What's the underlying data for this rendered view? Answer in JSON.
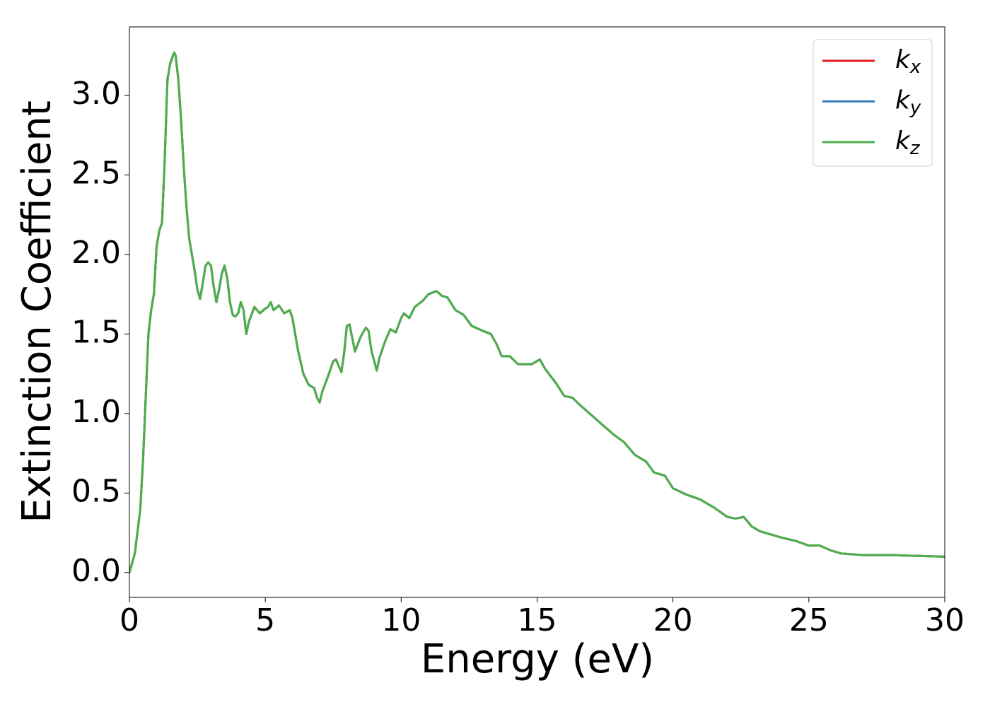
{
  "chart_data": {
    "type": "line",
    "xlabel": "Energy (eV)",
    "ylabel": "Extinction Coefficient",
    "x": [
      0,
      0.2,
      0.4,
      0.5,
      0.6,
      0.7,
      0.8,
      0.9,
      1.0,
      1.1,
      1.2,
      1.3,
      1.4,
      1.5,
      1.6,
      1.65,
      1.7,
      1.8,
      1.9,
      2.0,
      2.1,
      2.2,
      2.3,
      2.4,
      2.5,
      2.6,
      2.7,
      2.8,
      2.9,
      3.0,
      3.1,
      3.2,
      3.3,
      3.4,
      3.5,
      3.6,
      3.7,
      3.8,
      3.9,
      4.0,
      4.1,
      4.2,
      4.3,
      4.4,
      4.6,
      4.8,
      5.0,
      5.1,
      5.2,
      5.3,
      5.5,
      5.7,
      5.9,
      6.0,
      6.2,
      6.4,
      6.6,
      6.8,
      6.9,
      7.0,
      7.1,
      7.3,
      7.5,
      7.6,
      7.8,
      7.9,
      8.0,
      8.1,
      8.3,
      8.5,
      8.7,
      8.8,
      8.9,
      9.1,
      9.2,
      9.4,
      9.6,
      9.8,
      10.0,
      10.1,
      10.3,
      10.5,
      10.8,
      11.0,
      11.3,
      11.5,
      11.7,
      12.0,
      12.3,
      12.6,
      13.0,
      13.3,
      13.5,
      13.7,
      14.0,
      14.3,
      14.8,
      15.1,
      15.3,
      15.7,
      16.0,
      16.3,
      16.6,
      17.0,
      17.4,
      17.8,
      18.2,
      18.6,
      19.0,
      19.3,
      19.7,
      20.0,
      20.5,
      21.0,
      21.5,
      22.0,
      22.3,
      22.6,
      22.9,
      23.2,
      23.6,
      24.0,
      24.5,
      25.0,
      25.4,
      25.8,
      26.2,
      27,
      28,
      29,
      30
    ],
    "series": [
      {
        "name": "kx",
        "color": "#e41a1c",
        "values": [
          0,
          0.12,
          0.4,
          0.7,
          1.1,
          1.5,
          1.65,
          1.75,
          2.05,
          2.15,
          2.2,
          2.6,
          3.1,
          3.2,
          3.25,
          3.27,
          3.25,
          3.1,
          2.85,
          2.55,
          2.3,
          2.1,
          2.0,
          1.9,
          1.78,
          1.72,
          1.82,
          1.93,
          1.95,
          1.93,
          1.8,
          1.7,
          1.78,
          1.88,
          1.93,
          1.85,
          1.7,
          1.62,
          1.61,
          1.63,
          1.7,
          1.65,
          1.5,
          1.58,
          1.67,
          1.63,
          1.66,
          1.67,
          1.7,
          1.65,
          1.68,
          1.63,
          1.65,
          1.6,
          1.4,
          1.25,
          1.18,
          1.16,
          1.1,
          1.07,
          1.14,
          1.23,
          1.33,
          1.34,
          1.26,
          1.38,
          1.55,
          1.56,
          1.39,
          1.48,
          1.54,
          1.52,
          1.4,
          1.27,
          1.35,
          1.45,
          1.53,
          1.51,
          1.6,
          1.63,
          1.6,
          1.67,
          1.71,
          1.75,
          1.77,
          1.74,
          1.73,
          1.65,
          1.62,
          1.55,
          1.52,
          1.5,
          1.44,
          1.36,
          1.36,
          1.31,
          1.31,
          1.34,
          1.28,
          1.19,
          1.11,
          1.1,
          1.05,
          0.99,
          0.93,
          0.87,
          0.82,
          0.74,
          0.7,
          0.63,
          0.61,
          0.53,
          0.49,
          0.46,
          0.41,
          0.35,
          0.34,
          0.35,
          0.29,
          0.26,
          0.24,
          0.22,
          0.2,
          0.17,
          0.17,
          0.14,
          0.12,
          0.11,
          0.11,
          0.105,
          0.1
        ]
      },
      {
        "name": "ky",
        "color": "#377eb8",
        "values": [
          0,
          0.12,
          0.4,
          0.7,
          1.1,
          1.5,
          1.65,
          1.75,
          2.05,
          2.15,
          2.2,
          2.6,
          3.1,
          3.2,
          3.25,
          3.27,
          3.25,
          3.1,
          2.85,
          2.55,
          2.3,
          2.1,
          2.0,
          1.9,
          1.78,
          1.72,
          1.82,
          1.93,
          1.95,
          1.93,
          1.8,
          1.7,
          1.78,
          1.88,
          1.93,
          1.85,
          1.7,
          1.62,
          1.61,
          1.63,
          1.7,
          1.65,
          1.5,
          1.58,
          1.67,
          1.63,
          1.66,
          1.67,
          1.7,
          1.65,
          1.68,
          1.63,
          1.65,
          1.6,
          1.4,
          1.25,
          1.18,
          1.16,
          1.1,
          1.07,
          1.14,
          1.23,
          1.33,
          1.34,
          1.26,
          1.38,
          1.55,
          1.56,
          1.39,
          1.48,
          1.54,
          1.52,
          1.4,
          1.27,
          1.35,
          1.45,
          1.53,
          1.51,
          1.6,
          1.63,
          1.6,
          1.67,
          1.71,
          1.75,
          1.77,
          1.74,
          1.73,
          1.65,
          1.62,
          1.55,
          1.52,
          1.5,
          1.44,
          1.36,
          1.36,
          1.31,
          1.31,
          1.34,
          1.28,
          1.19,
          1.11,
          1.1,
          1.05,
          0.99,
          0.93,
          0.87,
          0.82,
          0.74,
          0.7,
          0.63,
          0.61,
          0.53,
          0.49,
          0.46,
          0.41,
          0.35,
          0.34,
          0.35,
          0.29,
          0.26,
          0.24,
          0.22,
          0.2,
          0.17,
          0.17,
          0.14,
          0.12,
          0.11,
          0.11,
          0.105,
          0.1
        ]
      },
      {
        "name": "kz",
        "color": "#4daf4a",
        "values": [
          0,
          0.12,
          0.4,
          0.7,
          1.1,
          1.5,
          1.65,
          1.75,
          2.05,
          2.15,
          2.2,
          2.6,
          3.1,
          3.2,
          3.25,
          3.27,
          3.25,
          3.1,
          2.85,
          2.55,
          2.3,
          2.1,
          2.0,
          1.9,
          1.78,
          1.72,
          1.82,
          1.93,
          1.95,
          1.93,
          1.8,
          1.7,
          1.78,
          1.88,
          1.93,
          1.85,
          1.7,
          1.62,
          1.61,
          1.63,
          1.7,
          1.65,
          1.5,
          1.58,
          1.67,
          1.63,
          1.66,
          1.67,
          1.7,
          1.65,
          1.68,
          1.63,
          1.65,
          1.6,
          1.4,
          1.25,
          1.18,
          1.16,
          1.1,
          1.07,
          1.14,
          1.23,
          1.33,
          1.34,
          1.26,
          1.38,
          1.55,
          1.56,
          1.39,
          1.48,
          1.54,
          1.52,
          1.4,
          1.27,
          1.35,
          1.45,
          1.53,
          1.51,
          1.6,
          1.63,
          1.6,
          1.67,
          1.71,
          1.75,
          1.77,
          1.74,
          1.73,
          1.65,
          1.62,
          1.55,
          1.52,
          1.5,
          1.44,
          1.36,
          1.36,
          1.31,
          1.31,
          1.34,
          1.28,
          1.19,
          1.11,
          1.1,
          1.05,
          0.99,
          0.93,
          0.87,
          0.82,
          0.74,
          0.7,
          0.63,
          0.61,
          0.53,
          0.49,
          0.46,
          0.41,
          0.35,
          0.34,
          0.35,
          0.29,
          0.26,
          0.24,
          0.22,
          0.2,
          0.17,
          0.17,
          0.14,
          0.12,
          0.11,
          0.11,
          0.105,
          0.1
        ]
      }
    ],
    "xlim": [
      0,
      30
    ],
    "xticks": [
      0,
      5,
      10,
      15,
      20,
      25,
      30
    ],
    "ylim": [
      -0.156,
      3.431
    ],
    "yticks": [
      {
        "value": 0,
        "label": "0.0"
      },
      0.5,
      {
        "value": 1,
        "label": "1.0"
      },
      1.5,
      {
        "value": 2,
        "label": "2.0"
      },
      2.5,
      {
        "value": 3,
        "label": "3.0"
      }
    ],
    "legend": "upper right"
  }
}
